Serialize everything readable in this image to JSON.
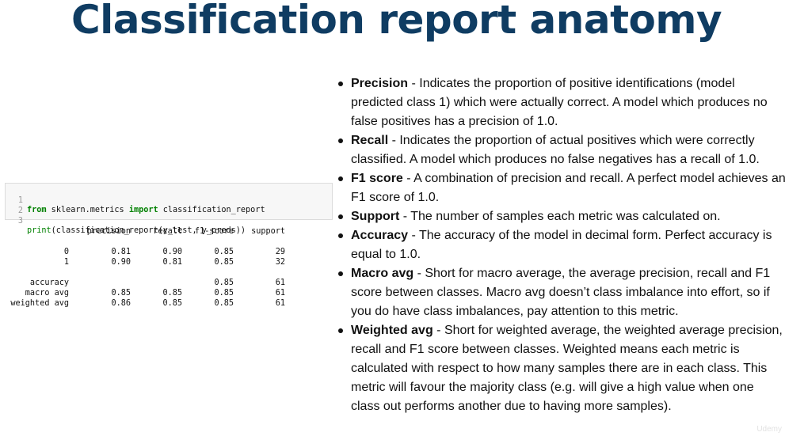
{
  "title": "Classification report anatomy",
  "code": {
    "lines": [
      {
        "number": "1",
        "keyword_from": "from",
        "module": " sklearn.metrics ",
        "keyword_import": "import",
        "name": " classification_report"
      },
      {
        "number": "2"
      },
      {
        "number": "3",
        "func": "print",
        "args": "(classification_report(y_test, y_preds))"
      }
    ]
  },
  "report": {
    "header": {
      "precision": "precision",
      "recall": "recall",
      "f1": "f1-score",
      "support": "support"
    },
    "rows": [
      {
        "label": "0",
        "precision": "0.81",
        "recall": "0.90",
        "f1": "0.85",
        "support": "29"
      },
      {
        "label": "1",
        "precision": "0.90",
        "recall": "0.81",
        "f1": "0.85",
        "support": "32"
      }
    ],
    "summary": [
      {
        "label": "accuracy",
        "precision": "",
        "recall": "",
        "f1": "0.85",
        "support": "61"
      },
      {
        "label": "macro avg",
        "precision": "0.85",
        "recall": "0.85",
        "f1": "0.85",
        "support": "61"
      },
      {
        "label": "weighted avg",
        "precision": "0.86",
        "recall": "0.85",
        "f1": "0.85",
        "support": "61"
      }
    ]
  },
  "bullets": [
    {
      "term": "Precision",
      "text": " - Indicates the proportion of positive identifications (model predicted class 1) which were actually correct. A model which produces no false positives has a precision of 1.0."
    },
    {
      "term": "Recall",
      "text": " - Indicates the proportion of actual positives which were correctly classified. A model which produces no false negatives has a recall of 1.0."
    },
    {
      "term": "F1 score",
      "text": " - A combination of precision and recall. A perfect model achieves an F1 score of 1.0."
    },
    {
      "term": "Support",
      "text": " - The number of samples each metric was calculated on."
    },
    {
      "term": "Accuracy",
      "text": " - The accuracy of the model in decimal form. Perfect accuracy is equal to 1.0."
    },
    {
      "term": "Macro avg",
      "text": " - Short for macro average, the average precision, recall and F1 score between classes. Macro avg doesn’t class imbalance into effort, so if you do have class imbalances, pay attention to this metric."
    },
    {
      "term": "Weighted avg",
      "text": " - Short for weighted average, the weighted average precision, recall and F1 score between classes. Weighted means each metric is calculated with respect to how many samples there are in each class. This metric will favour the majority class (e.g. will give a high value when one class out performs another due to having more samples)."
    }
  ],
  "watermark": "Udemy"
}
